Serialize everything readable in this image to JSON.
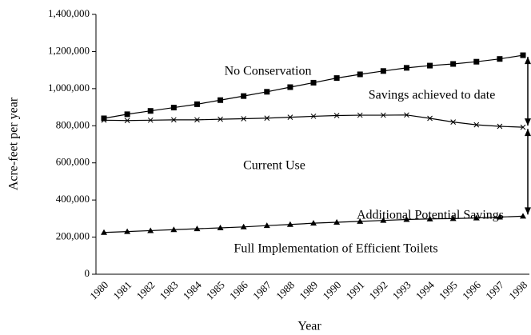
{
  "chart_data": {
    "type": "line",
    "xlabel": "Year",
    "ylabel": "Acre-feet per year",
    "categories": [
      "1980",
      "1981",
      "1982",
      "1983",
      "1984",
      "1985",
      "1986",
      "1987",
      "1988",
      "1989",
      "1990",
      "1991",
      "1992",
      "1993",
      "1994",
      "1995",
      "1996",
      "1997",
      "1998"
    ],
    "series": [
      {
        "name": "No Conservation",
        "color": "#000000",
        "marker": "square",
        "values": [
          840000,
          862000,
          880000,
          898000,
          916000,
          938000,
          960000,
          983000,
          1008000,
          1032000,
          1057000,
          1077000,
          1095000,
          1112000,
          1124000,
          1133000,
          1145000,
          1160000,
          1180000
        ]
      },
      {
        "name": "Current Use",
        "color": "#000000",
        "marker": "x",
        "values": [
          830000,
          828000,
          830000,
          832000,
          832000,
          835000,
          838000,
          841000,
          846000,
          851000,
          855000,
          857000,
          857000,
          858000,
          840000,
          820000,
          805000,
          797000,
          792000
        ]
      },
      {
        "name": "Full Implementation of Efficient Toilets",
        "color": "#000000",
        "marker": "triangle",
        "values": [
          225000,
          230000,
          235000,
          240000,
          245000,
          250000,
          255000,
          262000,
          268000,
          275000,
          280000,
          285000,
          290000,
          295000,
          298000,
          300000,
          303000,
          308000,
          313000
        ]
      }
    ],
    "annotations": [
      "Savings achieved to date",
      "Additional Potential Savings"
    ],
    "ylim": [
      0,
      1400000
    ],
    "yticks": [
      0,
      {
        "value": 200000,
        "label": "200,000"
      },
      {
        "value": 400000,
        "label": "400,000"
      },
      {
        "value": 600000,
        "label": "600,000"
      },
      {
        "value": 800000,
        "label": "800,000"
      },
      {
        "value": 1000000,
        "label": "1,000,000"
      },
      {
        "value": 1200000,
        "label": "1,200,000"
      },
      {
        "value": 1400000,
        "label": "1,400,000"
      }
    ],
    "grid": false
  }
}
